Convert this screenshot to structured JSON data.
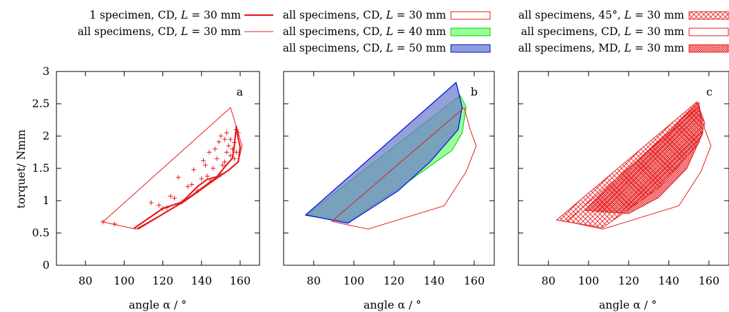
{
  "colors": {
    "red": "#e41a1c",
    "green": "#00cc00",
    "green_fill": "#99ff99",
    "blue": "#0000ee",
    "blue_fill": "#6a7dc9",
    "axis": "#000000"
  },
  "chart_data": [
    {
      "type": "scatter",
      "panel_label": "a",
      "xlabel": "angle α / °",
      "ylabel": "torquet/ Nmm",
      "xlim": [
        65,
        170
      ],
      "ylim": [
        0,
        3
      ],
      "xticks": [
        80,
        100,
        120,
        140,
        160
      ],
      "yticks": [
        0,
        0.5,
        1,
        1.5,
        2,
        2.5,
        3
      ],
      "legend": [
        {
          "prefix": "1 specimen, CD, ",
          "var": "L",
          "suffix": " = 30 mm",
          "style": "thick-line"
        },
        {
          "prefix": "all specimens, CD, ",
          "var": "L",
          "suffix": " = 30 mm",
          "style": "thin-line"
        }
      ],
      "series": [
        {
          "name": "all specimens, CD, L = 30 mm",
          "kind": "hull",
          "points": [
            [
              89,
              0.67
            ],
            [
              106,
              0.56
            ],
            [
              131,
              0.98
            ],
            [
              154,
              1.47
            ],
            [
              159,
              1.6
            ],
            [
              161,
              1.85
            ],
            [
              155,
              2.44
            ],
            [
              89,
              0.67
            ]
          ]
        },
        {
          "name": "1 specimen, CD, L = 30 mm",
          "kind": "curve",
          "points": [
            [
              105,
              0.57
            ],
            [
              120,
              0.88
            ],
            [
              130,
              0.98
            ],
            [
              138,
              1.22
            ],
            [
              143,
              1.33
            ],
            [
              148,
              1.37
            ],
            [
              152,
              1.52
            ],
            [
              156,
              1.66
            ],
            [
              157,
              1.85
            ],
            [
              158,
              2.15
            ],
            [
              159,
              1.96
            ],
            [
              160,
              1.83
            ],
            [
              159,
              1.6
            ],
            [
              154,
              1.47
            ],
            [
              145,
              1.3
            ],
            [
              131,
              0.99
            ],
            [
              107,
              0.56
            ]
          ]
        },
        {
          "name": "measurements",
          "kind": "markers",
          "points": [
            [
              89,
              0.67
            ],
            [
              95,
              0.64
            ],
            [
              114,
              0.97
            ],
            [
              118,
              0.93
            ],
            [
              120,
              0.88
            ],
            [
              122,
              0.89
            ],
            [
              124,
              1.07
            ],
            [
              126,
              1.04
            ],
            [
              128,
              1.36
            ],
            [
              130,
              0.98
            ],
            [
              133,
              1.22
            ],
            [
              135,
              1.25
            ],
            [
              136,
              1.48
            ],
            [
              138,
              1.15
            ],
            [
              140,
              1.34
            ],
            [
              141,
              1.62
            ],
            [
              142,
              1.55
            ],
            [
              143,
              1.38
            ],
            [
              144,
              1.75
            ],
            [
              145,
              1.31
            ],
            [
              146,
              1.5
            ],
            [
              147,
              1.8
            ],
            [
              148,
              1.65
            ],
            [
              149,
              1.91
            ],
            [
              150,
              1.4
            ],
            [
              150,
              2.0
            ],
            [
              151,
              1.55
            ],
            [
              152,
              1.95
            ],
            [
              152,
              1.6
            ],
            [
              153,
              2.05
            ],
            [
              153,
              1.75
            ],
            [
              154,
              1.85
            ],
            [
              155,
              1.7
            ],
            [
              155,
              1.95
            ],
            [
              156,
              1.8
            ],
            [
              157,
              1.9
            ],
            [
              157,
              1.65
            ],
            [
              158,
              2.1
            ],
            [
              158,
              1.75
            ],
            [
              159,
              2.05
            ]
          ]
        }
      ]
    },
    {
      "type": "area",
      "panel_label": "b",
      "xlabel": "angle α / °",
      "xlim": [
        65,
        170
      ],
      "ylim": [
        0,
        3
      ],
      "xticks": [
        80,
        100,
        120,
        140,
        160
      ],
      "yticks": [
        0,
        0.5,
        1,
        1.5,
        2,
        2.5,
        3
      ],
      "legend": [
        {
          "prefix": "all specimens, CD, ",
          "var": "L",
          "suffix": " = 30 mm",
          "style": "box-red"
        },
        {
          "prefix": "all specimens, CD, ",
          "var": "L",
          "suffix": " = 40 mm",
          "style": "box-green"
        },
        {
          "prefix": "all specimens, CD, ",
          "var": "L",
          "suffix": " = 50 mm",
          "style": "box-blue"
        }
      ],
      "series": [
        {
          "name": "all specimens, CD, L = 40 mm",
          "kind": "region-green",
          "points": [
            [
              76,
              0.77
            ],
            [
              153,
              2.63
            ],
            [
              156,
              2.45
            ],
            [
              154,
              2.05
            ],
            [
              149,
              1.78
            ],
            [
              122,
              1.18
            ],
            [
              97,
              0.67
            ],
            [
              76,
              0.77
            ]
          ]
        },
        {
          "name": "all specimens, CD, L = 50 mm",
          "kind": "region-blue",
          "points": [
            [
              76,
              0.78
            ],
            [
              151,
              2.83
            ],
            [
              154,
              2.45
            ],
            [
              152,
              2.1
            ],
            [
              138,
              1.6
            ],
            [
              122,
              1.15
            ],
            [
              97,
              0.65
            ],
            [
              76,
              0.78
            ]
          ]
        },
        {
          "name": "all specimens, CD, L = 30 mm",
          "kind": "outline-red",
          "points": [
            [
              89,
              0.68
            ],
            [
              107,
              0.56
            ],
            [
              145,
              0.92
            ],
            [
              156,
              1.45
            ],
            [
              161,
              1.85
            ],
            [
              158,
              2.1
            ],
            [
              155,
              2.44
            ],
            [
              89,
              0.68
            ]
          ]
        }
      ]
    },
    {
      "type": "area",
      "panel_label": "c",
      "xlabel": "angle α / °",
      "xlim": [
        65,
        170
      ],
      "ylim": [
        0,
        3
      ],
      "xticks": [
        80,
        100,
        120,
        140,
        160
      ],
      "yticks": [
        0,
        0.5,
        1,
        1.5,
        2,
        2.5,
        3
      ],
      "legend": [
        {
          "prefix": "all specimens, 45°, ",
          "var": "L",
          "suffix": " = 30 mm",
          "style": "box-hatch"
        },
        {
          "prefix": "all specimens, CD, ",
          "var": "L",
          "suffix": " = 30 mm",
          "style": "box-red"
        },
        {
          "prefix": "all specimens, MD, ",
          "var": "L",
          "suffix": " = 30 mm",
          "style": "box-dense"
        }
      ],
      "series": [
        {
          "name": "all specimens, 45°, L = 30 mm",
          "kind": "region-hatch",
          "points": [
            [
              84,
              0.7
            ],
            [
              154,
              2.53
            ],
            [
              158,
              2.2
            ],
            [
              155,
              1.9
            ],
            [
              148,
              1.65
            ],
            [
              135,
              1.2
            ],
            [
              107,
              0.58
            ],
            [
              84,
              0.7
            ]
          ]
        },
        {
          "name": "all specimens, MD, L = 30 mm",
          "kind": "region-dense",
          "points": [
            [
              98,
              0.85
            ],
            [
              155,
              2.52
            ],
            [
              157,
              2.05
            ],
            [
              149,
              1.5
            ],
            [
              135,
              1.05
            ],
            [
              120,
              0.8
            ],
            [
              98,
              0.85
            ]
          ]
        },
        {
          "name": "all specimens, CD, L = 30 mm",
          "kind": "outline-red",
          "points": [
            [
              89,
              0.68
            ],
            [
              107,
              0.56
            ],
            [
              145,
              0.92
            ],
            [
              156,
              1.45
            ],
            [
              161,
              1.85
            ],
            [
              158,
              2.1
            ],
            [
              155,
              2.44
            ],
            [
              89,
              0.68
            ]
          ]
        }
      ]
    }
  ]
}
